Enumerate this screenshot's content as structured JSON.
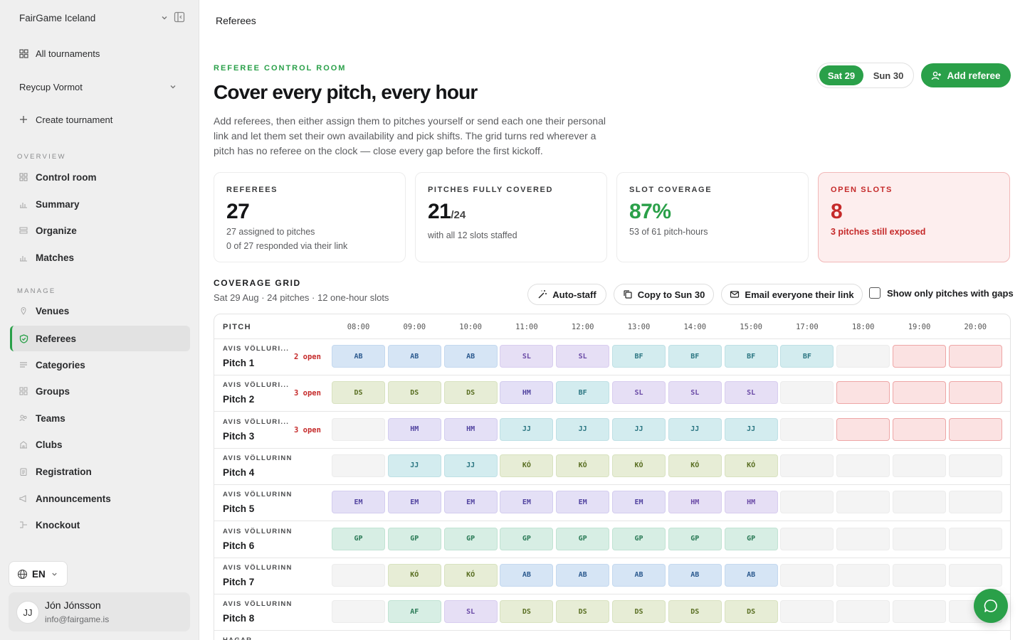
{
  "sidebar": {
    "org_name": "FairGame Iceland",
    "all_tournaments": "All tournaments",
    "tournament": "Reycup Vormot",
    "create_tournament": "Create tournament",
    "overview_label": "OVERVIEW",
    "overview_items": [
      {
        "label": "Control room",
        "icon": "grid-icon"
      },
      {
        "label": "Summary",
        "icon": "bar-chart-icon"
      },
      {
        "label": "Organize",
        "icon": "layout-icon"
      },
      {
        "label": "Matches",
        "icon": "bar-chart-icon"
      }
    ],
    "manage_label": "MANAGE",
    "manage_items": [
      {
        "label": "Venues",
        "icon": "map-pin-icon"
      },
      {
        "label": "Referees",
        "icon": "shield-check-icon"
      },
      {
        "label": "Categories",
        "icon": "list-icon"
      },
      {
        "label": "Groups",
        "icon": "grid-icon"
      },
      {
        "label": "Teams",
        "icon": "users-icon"
      },
      {
        "label": "Clubs",
        "icon": "building-icon"
      },
      {
        "label": "Registration",
        "icon": "clipboard-icon"
      },
      {
        "label": "Announcements",
        "icon": "megaphone-icon"
      },
      {
        "label": "Knockout",
        "icon": "bracket-icon"
      }
    ],
    "active_item": "Referees",
    "language": "EN",
    "user": {
      "initials": "JJ",
      "name": "Jón Jónsson",
      "email": "info@fairgame.is"
    }
  },
  "header": {
    "title": "Referees"
  },
  "hero": {
    "eyebrow": "REFEREE CONTROL ROOM",
    "title": "Cover every pitch, every hour",
    "description": "Add referees, then either assign them to pitches yourself or send each one their personal link and let them set their own availability and pick shifts. The grid turns red wherever a pitch has no referee on the clock — close every gap before the first kickoff."
  },
  "day_toggle": {
    "selected": "Sat 29",
    "other": "Sun 30"
  },
  "add_referee_label": "Add referee",
  "stats": [
    {
      "label": "REFEREES",
      "value": "27",
      "suffix": "",
      "line1": "27 assigned to pitches",
      "line2": "0 of 27 responded via their link"
    },
    {
      "label": "PITCHES FULLY COVERED",
      "value": "21",
      "suffix": "/24",
      "line1": "with all 12 slots staffed",
      "line2": ""
    },
    {
      "label": "SLOT COVERAGE",
      "value": "87%",
      "suffix": "",
      "line1": "53 of 61 pitch-hours",
      "line2": ""
    },
    {
      "label": "OPEN SLOTS",
      "value": "8",
      "suffix": "",
      "line1": "3 pitches still exposed",
      "line2": ""
    }
  ],
  "grid": {
    "title": "COVERAGE GRID",
    "subtitle": "Sat 29 Aug · 24 pitches · 12 one-hour slots",
    "auto_staff": "Auto-staff",
    "copy_to": "Copy to Sun 30",
    "email_all": "Email everyone their link",
    "gaps_toggle": "Show only pitches with gaps",
    "pitch_header": "PITCH",
    "hours": [
      "08:00",
      "09:00",
      "10:00",
      "11:00",
      "12:00",
      "13:00",
      "14:00",
      "15:00",
      "17:00",
      "18:00",
      "19:00",
      "20:00"
    ],
    "rows": [
      {
        "venue": "AVIS VÖLLURI...",
        "pitch": "Pitch 1",
        "open": "2 open",
        "cells": [
          [
            "AB",
            "blue"
          ],
          [
            "AB",
            "blue"
          ],
          [
            "AB",
            "blue"
          ],
          [
            "SL",
            "purple"
          ],
          [
            "SL",
            "purple"
          ],
          [
            "BF",
            "cyan"
          ],
          [
            "BF",
            "cyan"
          ],
          [
            "BF",
            "cyan"
          ],
          [
            "BF",
            "cyan"
          ],
          [
            "",
            "empty"
          ],
          [
            "",
            "gap"
          ],
          [
            "",
            "gap"
          ]
        ]
      },
      {
        "venue": "AVIS VÖLLURI...",
        "pitch": "Pitch 2",
        "open": "3 open",
        "cells": [
          [
            "DS",
            "olive"
          ],
          [
            "DS",
            "olive"
          ],
          [
            "DS",
            "olive"
          ],
          [
            "HM",
            "violet"
          ],
          [
            "BF",
            "cyan"
          ],
          [
            "SL",
            "purple"
          ],
          [
            "SL",
            "purple"
          ],
          [
            "SL",
            "purple"
          ],
          [
            "",
            "empty"
          ],
          [
            "",
            "gap"
          ],
          [
            "",
            "gap"
          ],
          [
            "",
            "gap"
          ]
        ]
      },
      {
        "venue": "AVIS VÖLLURI...",
        "pitch": "Pitch 3",
        "open": "3 open",
        "cells": [
          [
            "",
            "empty"
          ],
          [
            "HM",
            "violet"
          ],
          [
            "HM",
            "violet"
          ],
          [
            "JJ",
            "cyan"
          ],
          [
            "JJ",
            "cyan"
          ],
          [
            "JJ",
            "cyan"
          ],
          [
            "JJ",
            "cyan"
          ],
          [
            "JJ",
            "cyan"
          ],
          [
            "",
            "empty"
          ],
          [
            "",
            "gap"
          ],
          [
            "",
            "gap"
          ],
          [
            "",
            "gap"
          ]
        ]
      },
      {
        "venue": "AVIS VÖLLURINN",
        "pitch": "Pitch 4",
        "open": "",
        "cells": [
          [
            "",
            "empty"
          ],
          [
            "JJ",
            "cyan"
          ],
          [
            "JJ",
            "cyan"
          ],
          [
            "KÓ",
            "olive"
          ],
          [
            "KÓ",
            "olive"
          ],
          [
            "KÓ",
            "olive"
          ],
          [
            "KÓ",
            "olive"
          ],
          [
            "KÓ",
            "olive"
          ],
          [
            "",
            "empty"
          ],
          [
            "",
            "empty"
          ],
          [
            "",
            "empty"
          ],
          [
            "",
            "empty"
          ]
        ]
      },
      {
        "venue": "AVIS VÖLLURINN",
        "pitch": "Pitch 5",
        "open": "",
        "cells": [
          [
            "EM",
            "violet"
          ],
          [
            "EM",
            "violet"
          ],
          [
            "EM",
            "violet"
          ],
          [
            "EM",
            "violet"
          ],
          [
            "EM",
            "violet"
          ],
          [
            "EM",
            "violet"
          ],
          [
            "HM",
            "purple"
          ],
          [
            "HM",
            "purple"
          ],
          [
            "",
            "empty"
          ],
          [
            "",
            "empty"
          ],
          [
            "",
            "empty"
          ],
          [
            "",
            "empty"
          ]
        ]
      },
      {
        "venue": "AVIS VÖLLURINN",
        "pitch": "Pitch 6",
        "open": "",
        "cells": [
          [
            "GP",
            "teal"
          ],
          [
            "GP",
            "teal"
          ],
          [
            "GP",
            "teal"
          ],
          [
            "GP",
            "teal"
          ],
          [
            "GP",
            "teal"
          ],
          [
            "GP",
            "teal"
          ],
          [
            "GP",
            "teal"
          ],
          [
            "GP",
            "teal"
          ],
          [
            "",
            "empty"
          ],
          [
            "",
            "empty"
          ],
          [
            "",
            "empty"
          ],
          [
            "",
            "empty"
          ]
        ]
      },
      {
        "venue": "AVIS VÖLLURINN",
        "pitch": "Pitch 7",
        "open": "",
        "cells": [
          [
            "",
            "empty"
          ],
          [
            "KÓ",
            "olive"
          ],
          [
            "KÓ",
            "olive"
          ],
          [
            "AB",
            "blue"
          ],
          [
            "AB",
            "blue"
          ],
          [
            "AB",
            "blue"
          ],
          [
            "AB",
            "blue"
          ],
          [
            "AB",
            "blue"
          ],
          [
            "",
            "empty"
          ],
          [
            "",
            "empty"
          ],
          [
            "",
            "empty"
          ],
          [
            "",
            "empty"
          ]
        ]
      },
      {
        "venue": "AVIS VÖLLURINN",
        "pitch": "Pitch 8",
        "open": "",
        "cells": [
          [
            "",
            "empty"
          ],
          [
            "AF",
            "teal"
          ],
          [
            "SL",
            "purple"
          ],
          [
            "DS",
            "olive"
          ],
          [
            "DS",
            "olive"
          ],
          [
            "DS",
            "olive"
          ],
          [
            "DS",
            "olive"
          ],
          [
            "DS",
            "olive"
          ],
          [
            "",
            "empty"
          ],
          [
            "",
            "empty"
          ],
          [
            "",
            "empty"
          ],
          [
            "",
            "empty"
          ]
        ]
      },
      {
        "venue": "HAGAR",
        "pitch": "",
        "open": "",
        "cells": []
      }
    ]
  }
}
